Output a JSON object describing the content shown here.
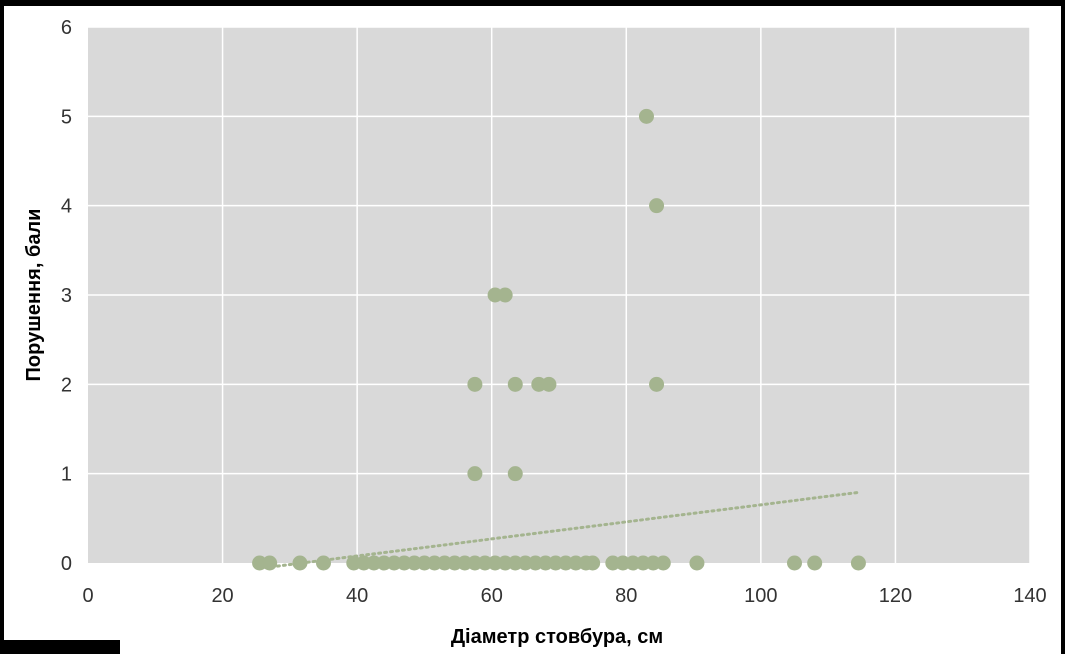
{
  "chart_data": {
    "type": "scatter",
    "title": "",
    "xlabel": "Діаметр стовбура, см",
    "ylabel": "Порушення, бали",
    "xlim": [
      0,
      140
    ],
    "ylim": [
      0,
      6
    ],
    "xticks": [
      0,
      20,
      40,
      60,
      80,
      100,
      120,
      140
    ],
    "yticks": [
      0,
      1,
      2,
      3,
      4,
      5,
      6
    ],
    "grid": true,
    "legend": "none",
    "colors": {
      "plot_bg": "#d9d9d9",
      "grid": "#ffffff",
      "marker": "#a4b48f",
      "trendline": "#a4b48f"
    },
    "series": [
      {
        "points": [
          [
            25.5,
            0
          ],
          [
            27,
            0
          ],
          [
            31.5,
            0
          ],
          [
            35,
            0
          ],
          [
            39.5,
            0
          ],
          [
            41,
            0
          ],
          [
            42.5,
            0
          ],
          [
            44,
            0
          ],
          [
            45.5,
            0
          ],
          [
            47,
            0
          ],
          [
            48.5,
            0
          ],
          [
            50,
            0
          ],
          [
            51.5,
            0
          ],
          [
            53,
            0
          ],
          [
            54.5,
            0
          ],
          [
            56,
            0
          ],
          [
            57.5,
            0
          ],
          [
            59,
            0
          ],
          [
            60.5,
            0
          ],
          [
            62,
            0
          ],
          [
            63.5,
            0
          ],
          [
            65,
            0
          ],
          [
            66.5,
            0
          ],
          [
            68,
            0
          ],
          [
            69.5,
            0
          ],
          [
            71,
            0
          ],
          [
            72.5,
            0
          ],
          [
            74,
            0
          ],
          [
            75,
            0
          ],
          [
            78,
            0
          ],
          [
            79.5,
            0
          ],
          [
            81,
            0
          ],
          [
            82.5,
            0
          ],
          [
            84,
            0
          ],
          [
            85.5,
            0
          ],
          [
            90.5,
            0
          ],
          [
            105,
            0
          ],
          [
            108,
            0
          ],
          [
            114.5,
            0
          ],
          [
            57.5,
            1
          ],
          [
            63.5,
            1
          ],
          [
            57.5,
            2
          ],
          [
            63.5,
            2
          ],
          [
            67,
            2
          ],
          [
            68.5,
            2
          ],
          [
            84.5,
            2
          ],
          [
            60.5,
            3
          ],
          [
            62,
            3
          ],
          [
            84.5,
            4
          ],
          [
            83,
            5
          ]
        ]
      }
    ],
    "trendline": {
      "style": "dotted",
      "from": [
        25.5,
        -0.06
      ],
      "to": [
        114.5,
        0.79
      ]
    }
  }
}
